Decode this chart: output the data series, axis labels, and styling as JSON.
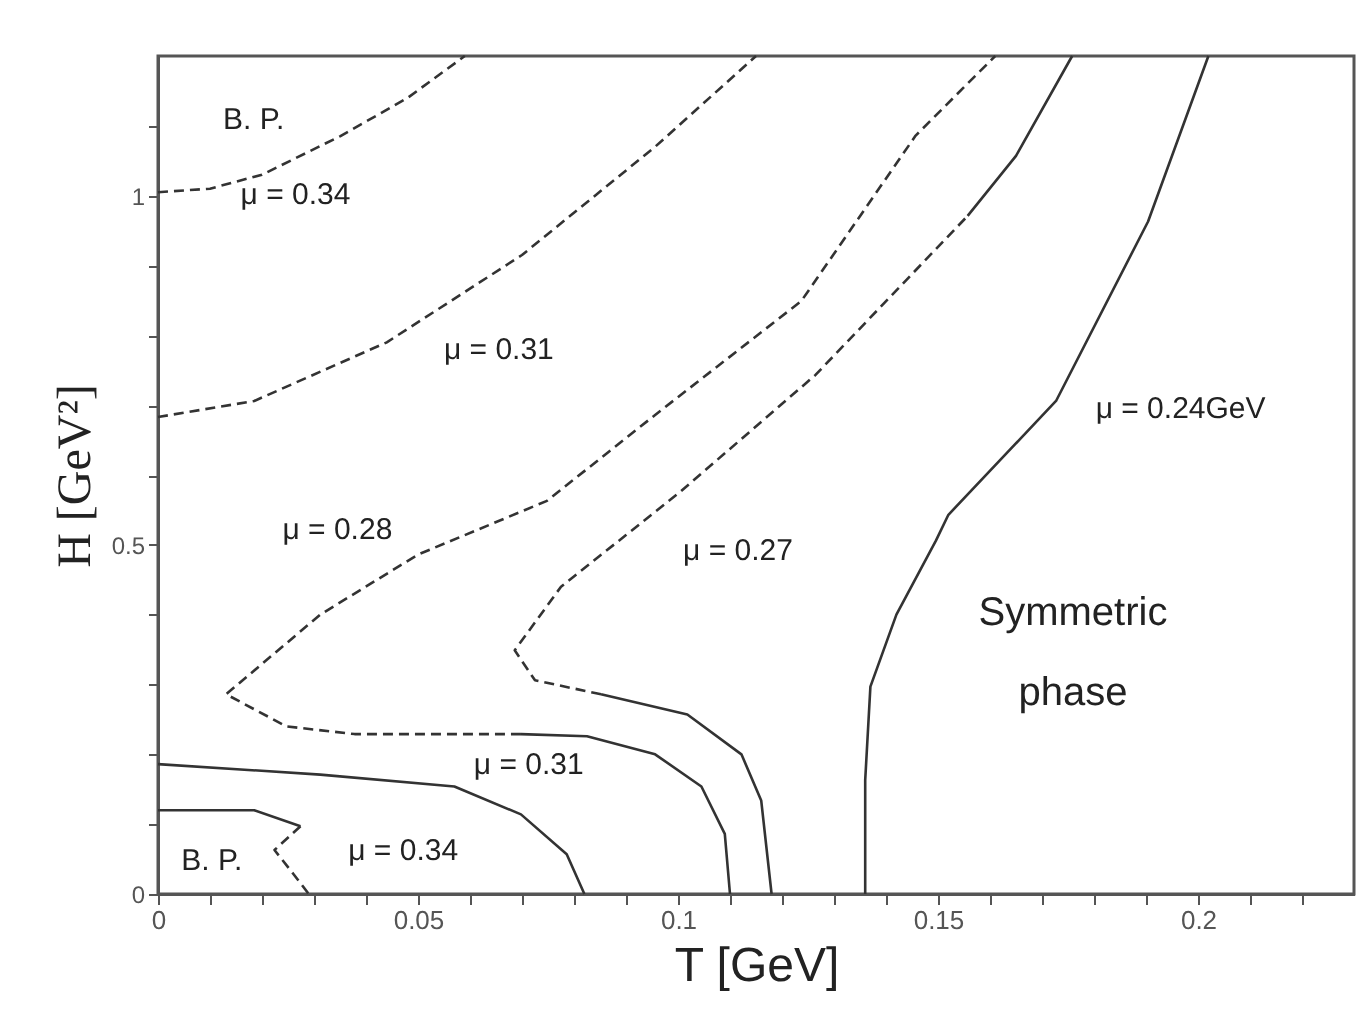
{
  "chart_data": {
    "type": "line",
    "xlabel": "T [GeV]",
    "ylabel": "H [GeV²]",
    "xlim": [
      0,
      0.23
    ],
    "ylim": [
      0,
      1.2
    ],
    "xticks": [
      0,
      {
        "value": 0.01,
        "label": null
      },
      {
        "value": 0.02,
        "label": null
      },
      {
        "value": 0.03,
        "label": null
      },
      {
        "value": 0.04,
        "label": null
      },
      0.05,
      {
        "value": 0.06,
        "label": null
      },
      {
        "value": 0.07,
        "label": null
      },
      {
        "value": 0.08,
        "label": null
      },
      {
        "value": 0.09,
        "label": null
      },
      0.1,
      {
        "value": 0.11,
        "label": null
      },
      {
        "value": 0.12,
        "label": null
      },
      {
        "value": 0.13,
        "label": null
      },
      {
        "value": 0.14,
        "label": null
      },
      0.15,
      {
        "value": 0.16,
        "label": null
      },
      {
        "value": 0.17,
        "label": null
      },
      {
        "value": 0.18,
        "label": null
      },
      {
        "value": 0.19,
        "label": null
      },
      0.2,
      {
        "value": 0.21,
        "label": null
      },
      {
        "value": 0.22,
        "label": null
      }
    ],
    "yticks": [
      0,
      {
        "value": 0.1,
        "label": null
      },
      {
        "value": 0.2,
        "label": null
      },
      {
        "value": 0.3,
        "label": null
      },
      {
        "value": 0.4,
        "label": null
      },
      0.5,
      {
        "value": 0.6,
        "label": null
      },
      {
        "value": 0.7,
        "label": null
      },
      {
        "value": 0.8,
        "label": null
      },
      {
        "value": 0.9,
        "label": null
      },
      1,
      {
        "value": 1.1,
        "label": null
      }
    ],
    "grid": false,
    "marker": "none",
    "series": [
      {
        "color": "#333333",
        "line_style": "dashed",
        "x": [
          0,
          0.01,
          0.02,
          0.035,
          0.048,
          0.059
        ],
        "values": [
          1.005,
          1.01,
          1.03,
          1.085,
          1.14,
          1.2
        ]
      },
      {
        "color": "#333333",
        "line_style": "dashed",
        "x": [
          0,
          0.0185,
          0.044,
          0.07,
          0.0956,
          0.115
        ],
        "values": [
          0.683,
          0.706,
          0.79,
          0.915,
          1.07,
          1.2
        ]
      },
      {
        "color": "#333333",
        "line_style": "dashed",
        "x": [
          0.0698,
          0.0378,
          0.0247,
          0.0131,
          0.0312,
          0.05,
          0.0748,
          0.0956,
          0.1237,
          0.1457,
          0.161
        ],
        "values": [
          0.229,
          0.229,
          0.24,
          0.286,
          0.4,
          0.486,
          0.563,
          0.686,
          0.849,
          1.086,
          1.2
        ]
      },
      {
        "color": "#333333",
        "line_style": "solid",
        "x": [
          0.0698,
          0.0825,
          0.0956,
          0.1045,
          0.109,
          0.11
        ],
        "values": [
          0.229,
          0.226,
          0.2,
          0.154,
          0.086,
          0
        ]
      },
      {
        "color": "#333333",
        "line_style": "dashed",
        "x": [
          0.0852,
          0.0725,
          0.0686,
          0.0775,
          0.09,
          0.1006,
          0.1264,
          0.1557
        ],
        "values": [
          0.286,
          0.306,
          0.349,
          0.44,
          0.514,
          0.577,
          0.743,
          0.971
        ]
      },
      {
        "color": "#333333",
        "line_style": "solid",
        "x": [
          0.1557,
          0.165,
          0.1758
        ],
        "values": [
          0.971,
          1.057,
          1.2
        ]
      },
      {
        "color": "#333333",
        "line_style": "solid",
        "x": [
          0.0852,
          0.1018,
          0.1122,
          0.116,
          0.118
        ],
        "values": [
          0.286,
          0.257,
          0.2,
          0.134,
          0
        ]
      },
      {
        "color": "#333333",
        "line_style": "solid",
        "x": [
          0.136,
          0.136,
          0.137,
          0.142,
          0.1496,
          0.152,
          0.1727,
          0.1904,
          0.202
        ],
        "values": [
          0,
          0.163,
          0.297,
          0.4,
          0.506,
          0.543,
          0.706,
          0.963,
          1.2
        ]
      },
      {
        "color": "#333333",
        "line_style": "solid",
        "x": [
          0,
          0.0312,
          0.057,
          0.0698,
          0.0786,
          0.082
        ],
        "values": [
          0.186,
          0.171,
          0.154,
          0.114,
          0.057,
          0
        ]
      },
      {
        "color": "#333333",
        "line_style": "solid",
        "x": [
          0,
          0.0185,
          0.0274
        ],
        "values": [
          0.12,
          0.12,
          0.097
        ]
      },
      {
        "color": "#333333",
        "line_style": "dashed",
        "x": [
          0.0274,
          0.0224,
          0.026,
          0.029
        ],
        "values": [
          0.097,
          0.063,
          0.029,
          0
        ]
      }
    ],
    "annotations": [
      "B. P.",
      "μ = 0.34",
      "μ = 0.31",
      "μ = 0.28",
      "μ = 0.27",
      "μ = 0.24GeV",
      "Symmetric",
      "phase",
      "μ = 0.31",
      "μ = 0.34",
      "B. P."
    ]
  }
}
